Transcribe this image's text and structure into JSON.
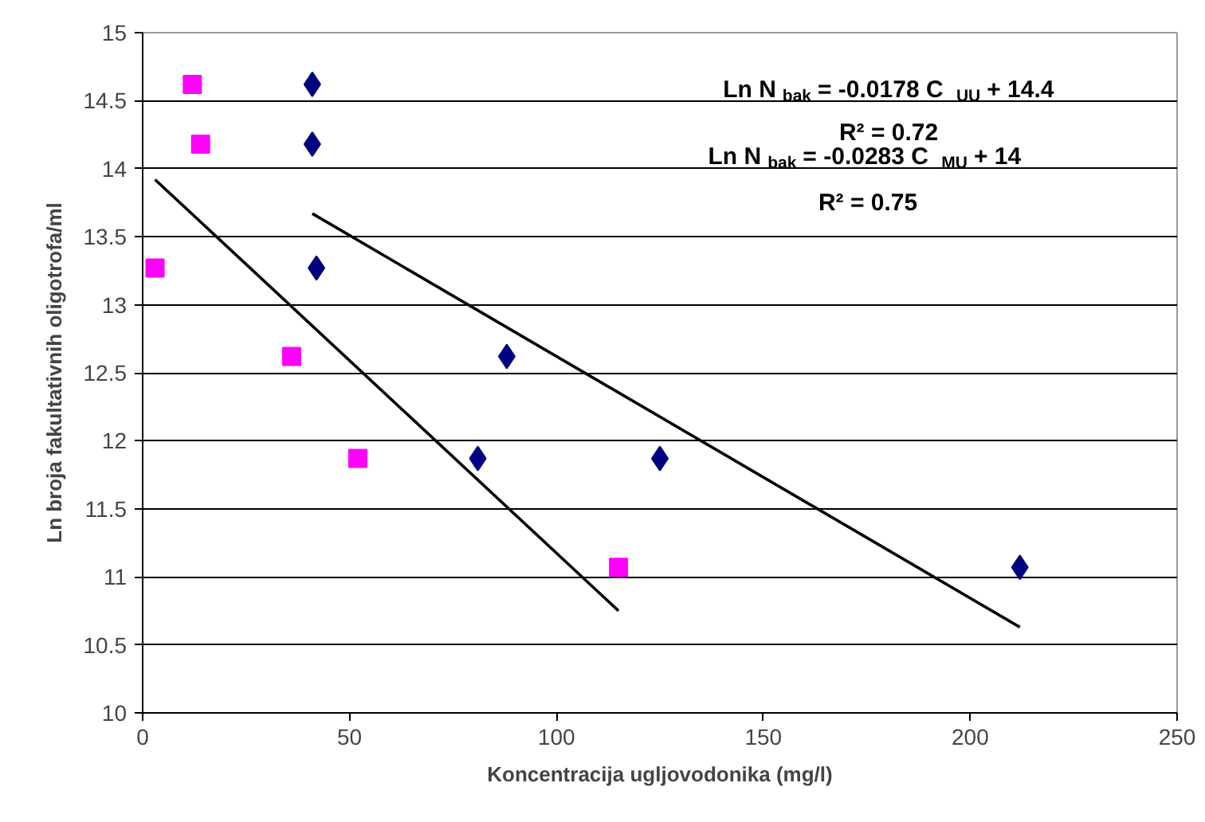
{
  "chart_data": {
    "type": "scatter",
    "xlabel": "Koncentracija ugljovodonika (mg/l)",
    "ylabel": "Ln broja fakultativnih oligotrofa/ml",
    "xlim": [
      0,
      250
    ],
    "xticks": [
      0,
      50,
      100,
      150,
      200,
      250
    ],
    "ylim": [
      10,
      15
    ],
    "yticks": [
      10,
      10.5,
      11,
      11.5,
      12,
      12.5,
      13,
      13.5,
      14,
      14.5,
      15
    ],
    "grid": "y",
    "series": [
      {
        "marker": "square",
        "color": "#ff00ff",
        "x": [
          12,
          14,
          3,
          36,
          52,
          115
        ],
        "values": [
          14.62,
          14.18,
          13.27,
          12.62,
          11.87,
          11.07
        ]
      },
      {
        "marker": "diamond",
        "color": "#000080",
        "x": [
          41,
          41,
          42,
          88,
          81,
          125,
          212
        ],
        "values": [
          14.62,
          14.18,
          13.27,
          12.62,
          11.87,
          11.87,
          11.07
        ]
      },
      {
        "type": "line",
        "color": "#000000",
        "x": [
          3,
          115
        ],
        "values": [
          13.92,
          10.75
        ]
      },
      {
        "type": "line",
        "color": "#000000",
        "x": [
          41,
          212
        ],
        "values": [
          13.67,
          10.63
        ]
      }
    ],
    "annotations": [
      "Ln N$_{bak}$ = -0.0178 C$_{UU}$ + 14.4",
      "R² = 0.72",
      "Ln N$_{bak}$ = -0.0283 C$_{MU}$ + 14",
      "R² = 0.75"
    ]
  }
}
